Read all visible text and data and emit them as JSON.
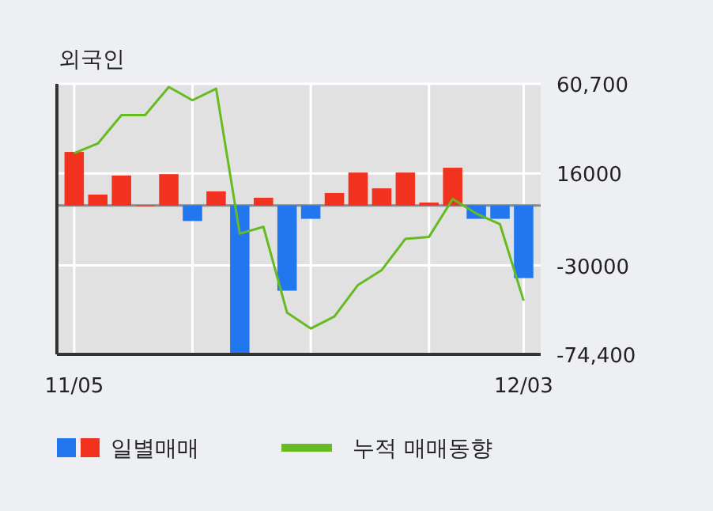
{
  "chart_data": {
    "type": "bar",
    "title": "외국인",
    "categories": [
      "11/05",
      null,
      null,
      null,
      null,
      null,
      null,
      null,
      null,
      null,
      null,
      null,
      null,
      null,
      null,
      null,
      null,
      null,
      null,
      "12/03"
    ],
    "series": [
      {
        "name": "일별매매",
        "colors": [
          "#f0321e",
          "#f0321e",
          "#f0321e",
          "#f0321e",
          "#f0321e",
          "#2277ee",
          "#f0321e",
          "#2277ee",
          "#f0321e",
          "#2277ee",
          "#2277ee",
          "#f0321e",
          "#f0321e",
          "#f0321e",
          "#f0321e",
          "#f0321e",
          "#f0321e",
          "#2277ee",
          "#2277ee",
          "#2277ee"
        ],
        "values": [
          26700,
          5400,
          14900,
          0,
          15600,
          -7800,
          7000,
          -74400,
          3800,
          -42600,
          -6700,
          6200,
          16400,
          8500,
          16400,
          1400,
          18800,
          -6700,
          -6700,
          -36300
        ]
      },
      {
        "name": "누적 매매동향",
        "type": "line",
        "color": "#66bb22",
        "values": [
          26100,
          30900,
          45100,
          45100,
          59100,
          52500,
          58300,
          -14100,
          -10700,
          -53600,
          -61500,
          -55500,
          -39700,
          -32300,
          -16700,
          -15700,
          3200,
          -4100,
          -9400,
          -47600
        ]
      }
    ],
    "ylim": [
      -74400,
      60700
    ],
    "yticks": [
      {
        "value": 60700,
        "label": "60,700"
      },
      16000,
      -30000,
      {
        "value": -74400,
        "label": "-74,400"
      }
    ],
    "grid": true,
    "legend": "bottom"
  }
}
